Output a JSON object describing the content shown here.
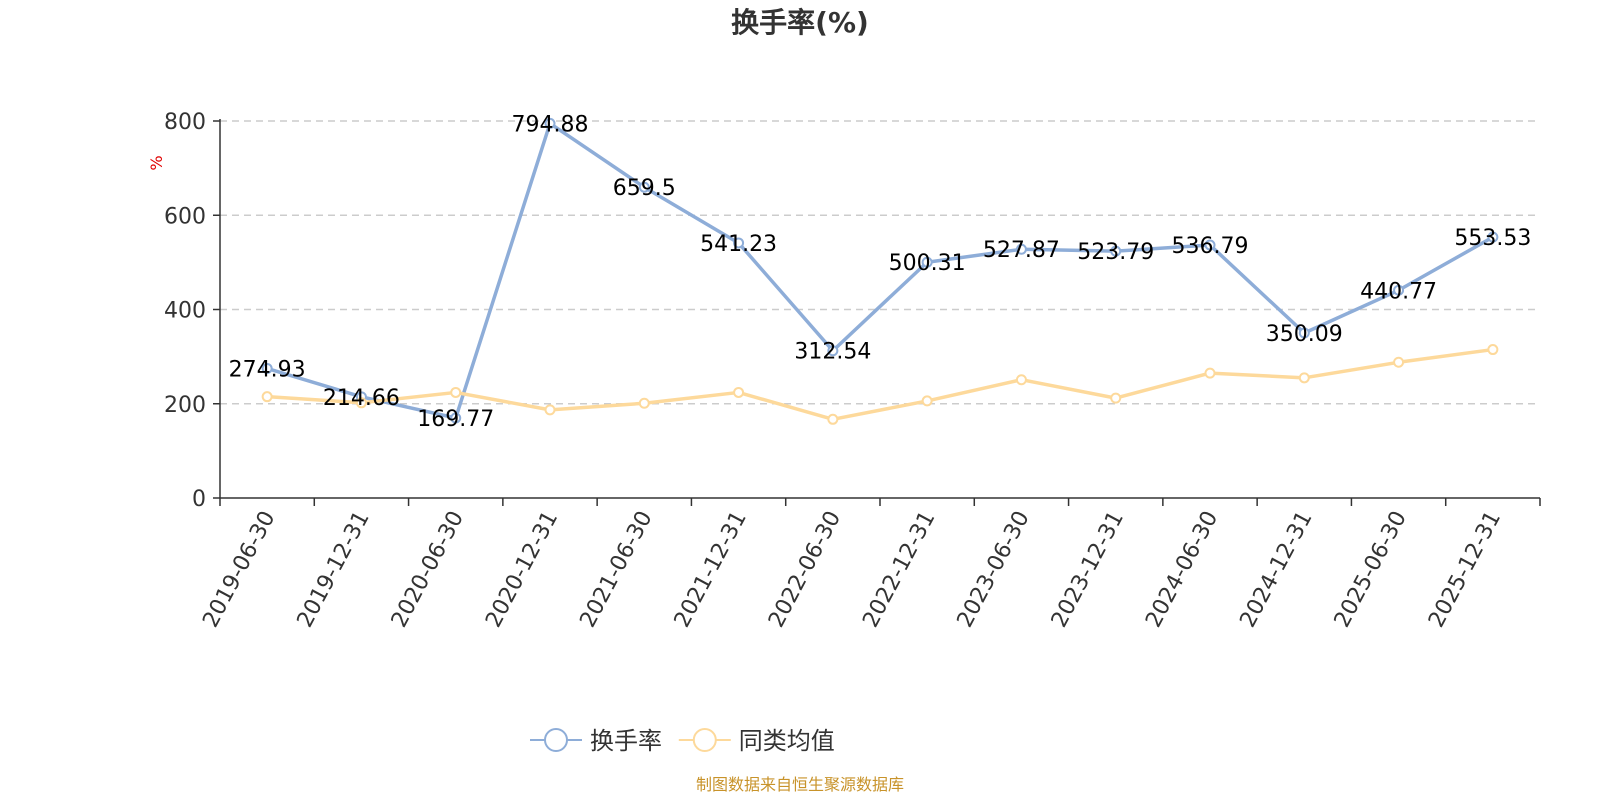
{
  "chart_data": {
    "type": "line",
    "title": "换手率(%)",
    "ylabel": "%",
    "xlabel": "",
    "ylim": [
      0,
      800
    ],
    "yticks": [
      0,
      200,
      400,
      600,
      800
    ],
    "grid": true,
    "legend_position": "bottom-center",
    "categories": [
      "2019-06-30",
      "2019-12-31",
      "2020-06-30",
      "2020-12-31",
      "2021-06-30",
      "2021-12-31",
      "2022-06-30",
      "2022-12-31",
      "2023-06-30",
      "2023-12-31",
      "2024-06-30",
      "2024-12-31",
      "2025-06-30",
      "2025-12-31"
    ],
    "series": [
      {
        "name": "换手率",
        "color": "#8eadd8",
        "show_labels": true,
        "values": [
          274.93,
          214.66,
          169.77,
          794.88,
          659.5,
          541.23,
          312.54,
          500.31,
          527.87,
          523.79,
          536.79,
          350.09,
          440.77,
          553.53
        ]
      },
      {
        "name": "同类均值",
        "color": "#fdd99b",
        "show_labels": false,
        "values": [
          215,
          202,
          224,
          187,
          201,
          224,
          167,
          206,
          251,
          212,
          265,
          255,
          288,
          315
        ]
      }
    ],
    "source": "制图数据来自恒生聚源数据库"
  }
}
